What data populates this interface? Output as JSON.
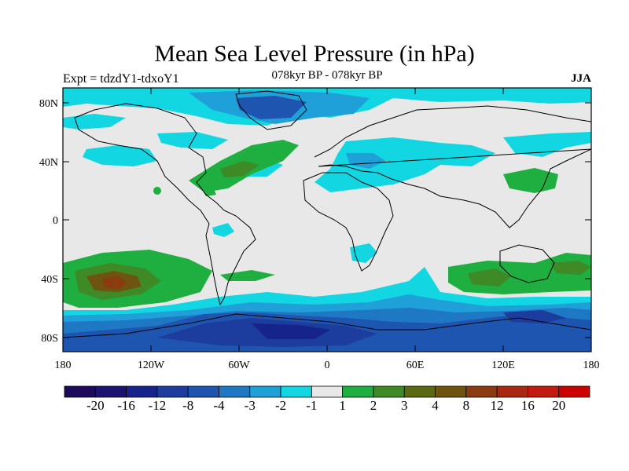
{
  "header": {
    "title": "Mean Sea Level Pressure (in hPa)",
    "experiment": "Expt = tdzdY1-tdxoY1",
    "period": "078kyr BP - 078kyr BP",
    "season": "JJA"
  },
  "axes": {
    "y_ticks": [
      "80N",
      "40N",
      "0",
      "40S",
      "80S"
    ],
    "x_ticks": [
      "180",
      "120W",
      "60W",
      "0",
      "60E",
      "120E",
      "180"
    ]
  },
  "colorbar": {
    "colors": [
      "#1e0a5a",
      "#1a1470",
      "#16238a",
      "#1c3c9e",
      "#1d55b0",
      "#1f78c4",
      "#1fa0d8",
      "#12d6e2",
      "#e8e8e8",
      "#1fae40",
      "#3e8a26",
      "#5a6a12",
      "#6e5410",
      "#8a3c10",
      "#a82810",
      "#c41a10",
      "#cc0000"
    ],
    "labels": [
      "-20",
      "-16",
      "-12",
      "-8",
      "-4",
      "-3",
      "-2",
      "-1",
      "1",
      "2",
      "3",
      "4",
      "8",
      "12",
      "16",
      "20"
    ]
  },
  "palette": {
    "land_bg": "#e8e8e8",
    "cyan": "#12d6e2",
    "lightblue": "#1fa0d8",
    "midblue": "#1f78c4",
    "blue": "#1d55b0",
    "darkblue": "#1c3c9e",
    "navy": "#16238a",
    "green": "#1fae40",
    "olive": "#3e8a26",
    "brown": "#6e5410",
    "rust": "#8a3c10"
  }
}
